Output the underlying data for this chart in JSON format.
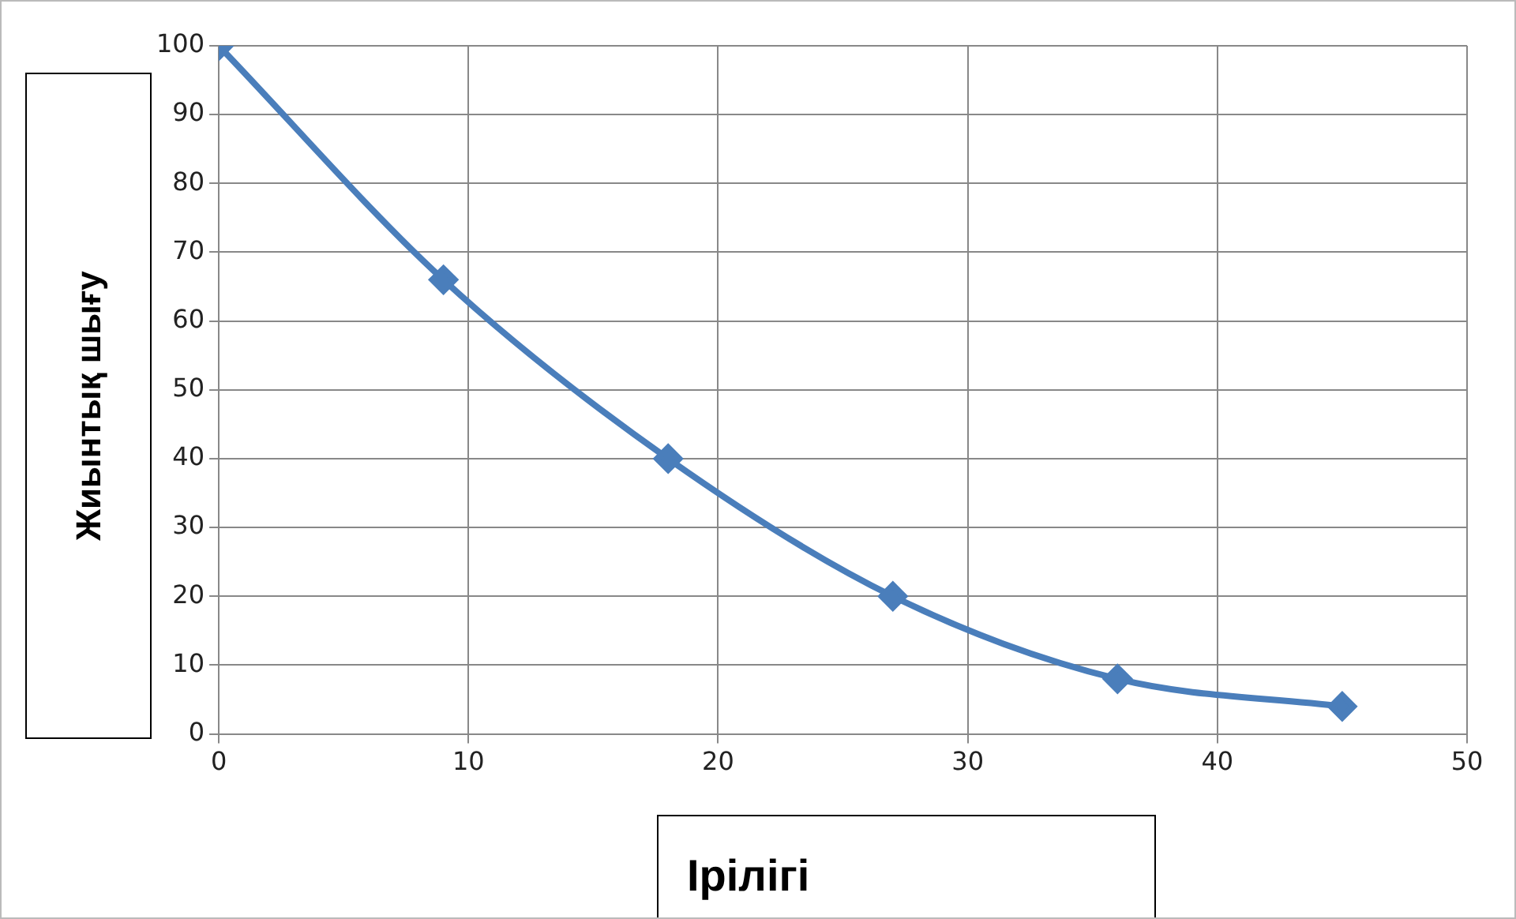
{
  "chart_data": {
    "type": "line",
    "xlabel": "Ірілігі",
    "ylabel": "Жиынтық шығу",
    "series": [
      {
        "color": "#4a7ebb",
        "x": [
          0,
          9,
          18,
          27,
          36,
          45
        ],
        "values": [
          100,
          66,
          40,
          20,
          8,
          4
        ]
      }
    ],
    "xlim": [
      0,
      50
    ],
    "xticks": [
      0,
      10,
      20,
      30,
      40,
      50
    ],
    "ylim": [
      0,
      100
    ],
    "yticks": [
      0,
      10,
      20,
      30,
      40,
      50,
      60,
      70,
      80,
      90,
      100
    ],
    "grid": true,
    "legend": false,
    "marker": "diamond",
    "line_style": "solid"
  }
}
